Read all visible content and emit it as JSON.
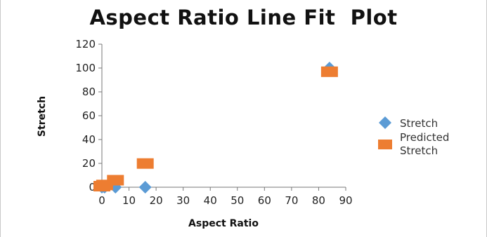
{
  "chart_data": {
    "type": "scatter",
    "title": "Aspect Ratio Line Fit  Plot",
    "xlabel": "Aspect Ratio",
    "ylabel": "Stretch",
    "xlim": [
      0,
      90
    ],
    "ylim": [
      0,
      120
    ],
    "xticks": [
      "0",
      "10",
      "20",
      "30",
      "40",
      "50",
      "60",
      "70",
      "80",
      "90"
    ],
    "yticks": [
      "0",
      "20",
      "40",
      "60",
      "80",
      "100",
      "120"
    ],
    "grid": false,
    "legend_position": "right",
    "series": [
      {
        "name": "Stretch",
        "marker": "diamond",
        "color": "#5b9bd5",
        "x": [
          0,
          1,
          5,
          16,
          84
        ],
        "y": [
          0,
          0,
          0,
          0,
          100
        ]
      },
      {
        "name": "Predicted Stretch",
        "marker": "square",
        "color": "#ed7d31",
        "x": [
          0,
          1,
          5,
          16,
          84
        ],
        "y": [
          0,
          1,
          5,
          19,
          96
        ]
      }
    ]
  }
}
